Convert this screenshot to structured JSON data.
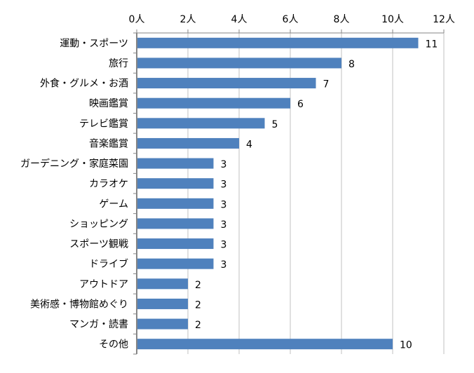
{
  "chart_data": {
    "type": "bar",
    "orientation": "horizontal",
    "categories": [
      "運動・スポーツ",
      "旅行",
      "外食・グルメ・お酒",
      "映画鑑賞",
      "テレビ鑑賞",
      "音楽鑑賞",
      "ガーデニング・家庭菜園",
      "カラオケ",
      "ゲーム",
      "ショッピング",
      "スポーツ観戦",
      "ドライブ",
      "アウトドア",
      "美術感・博物館めぐり",
      "マンガ・読書",
      "その他"
    ],
    "values": [
      11,
      8,
      7,
      6,
      5,
      4,
      3,
      3,
      3,
      3,
      3,
      3,
      2,
      2,
      2,
      10
    ],
    "xlim": [
      0,
      12
    ],
    "xticks": [
      0,
      2,
      4,
      6,
      8,
      10,
      12
    ],
    "tick_suffix": "人",
    "axis_position": "top",
    "grid": true,
    "bar_color": "#4F81BD",
    "grid_color": "#C0C0C0",
    "data_labels": true
  }
}
